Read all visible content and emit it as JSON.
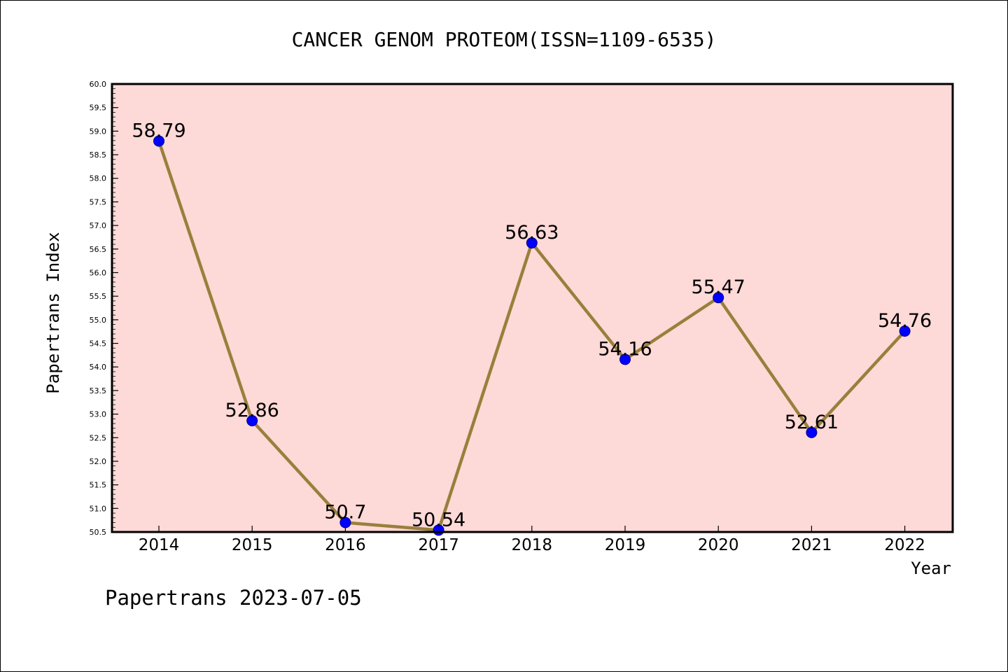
{
  "footer_text": "Papertrans 2023-07-05",
  "colors": {
    "plot_background": "#fdd9d7",
    "line": "#9a7f3c",
    "marker": "#0000ff",
    "marker_edge": "#00008b",
    "axis": "#000000"
  },
  "chart_data": {
    "type": "line",
    "title": "CANCER GENOM PROTEOM(ISSN=1109-6535)",
    "xlabel": "Year",
    "ylabel": "Papertrans Index",
    "categories": [
      "2014",
      "2015",
      "2016",
      "2017",
      "2018",
      "2019",
      "2020",
      "2021",
      "2022"
    ],
    "series": [
      {
        "values": [
          58.79,
          52.86,
          50.7,
          50.54,
          56.63,
          54.16,
          55.47,
          52.61,
          54.76
        ],
        "labels": [
          "58.79",
          "52.86",
          "50.7",
          "50.54",
          "56.63",
          "54.16",
          "55.47",
          "52.61",
          "54.76"
        ]
      }
    ],
    "ylim": [
      50.5,
      60.0
    ],
    "yticks": [
      "50.5",
      "51.0",
      "51.5",
      "52.0",
      "52.5",
      "53.0",
      "53.5",
      "54.0",
      "54.5",
      "55.0",
      "55.5",
      "56.0",
      "56.5",
      "57.0",
      "57.5",
      "58.0",
      "58.5",
      "59.0",
      "59.5",
      "60.0"
    ],
    "grid": false,
    "legend": "none"
  }
}
